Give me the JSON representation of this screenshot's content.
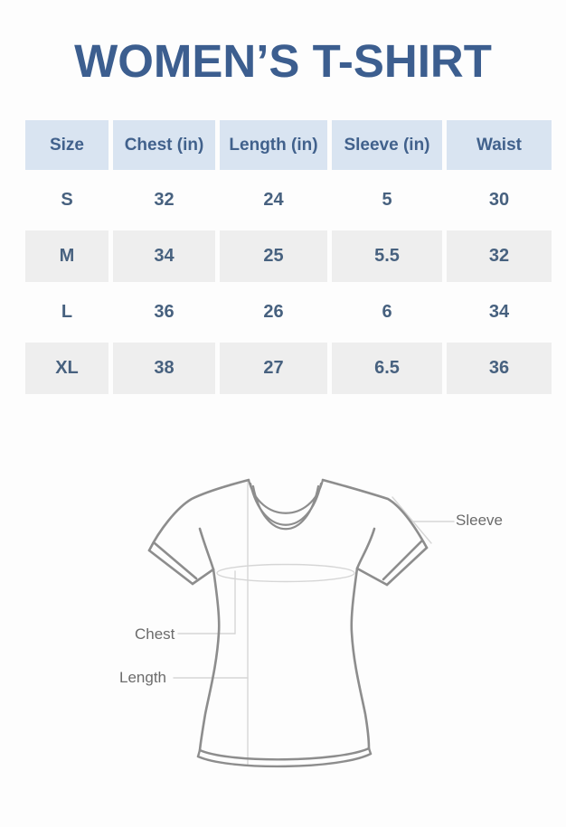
{
  "title": "WOMEN’S T-SHIRT",
  "size_chart": {
    "columns": [
      "Size",
      "Chest (in)",
      "Length (in)",
      "Sleeve (in)",
      "Waist"
    ],
    "rows": [
      [
        "S",
        "32",
        "24",
        "5",
        "30"
      ],
      [
        "M",
        "34",
        "25",
        "5.5",
        "32"
      ],
      [
        "L",
        "36",
        "26",
        "6",
        "34"
      ],
      [
        "XL",
        "38",
        "27",
        "6.5",
        "36"
      ]
    ]
  },
  "diagram": {
    "labels": {
      "sleeve": "Sleeve",
      "chest": "Chest",
      "length": "Length"
    }
  },
  "colors": {
    "title_text": "#3c5e8f",
    "table_text": "#47617f",
    "header_text": "#41618c",
    "header_bg": "#d9e4f1",
    "alt_row_bg": "#eeeeee",
    "shirt_outline": "#8d8d8d",
    "guide_line": "#d6d6d6",
    "label_text": "#6b6b6b",
    "page_bg": "#fdfdfd"
  }
}
